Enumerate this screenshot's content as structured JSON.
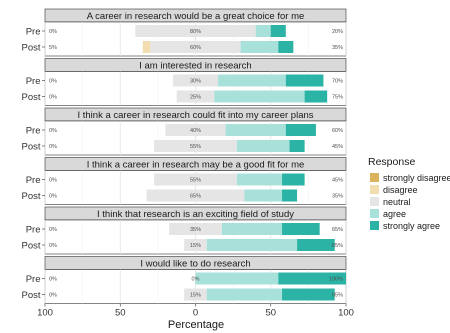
{
  "chart_data": {
    "type": "bar",
    "xlabel": "Percentage",
    "xticks": [
      "100",
      "50",
      "0",
      "50",
      "100"
    ],
    "xlim": [
      -100,
      100
    ],
    "legend": {
      "title": "Response",
      "placement": "right",
      "items": [
        {
          "label": "strongly disagree",
          "color": "#d9b45c"
        },
        {
          "label": "disagree",
          "color": "#f2ddb0"
        },
        {
          "label": "neutral",
          "color": "#e5e5e5"
        },
        {
          "label": "agree",
          "color": "#a8e0da"
        },
        {
          "label": "strongly agree",
          "color": "#2bb3a5"
        }
      ]
    },
    "panels": [
      {
        "title": "A career in research would be a great choice for me",
        "rows": [
          {
            "group": "Pre",
            "strongly_disagree": 0,
            "disagree": 0,
            "neutral": 80,
            "agree": 10,
            "strongly_agree": 10,
            "left_label": "0%",
            "center_label": "80%",
            "right_label": "20%"
          },
          {
            "group": "Post",
            "strongly_disagree": 0,
            "disagree": 5,
            "neutral": 60,
            "agree": 25,
            "strongly_agree": 10,
            "left_label": "5%",
            "center_label": "60%",
            "right_label": "35%"
          }
        ]
      },
      {
        "title": "I am interested in research",
        "rows": [
          {
            "group": "Pre",
            "strongly_disagree": 0,
            "disagree": 0,
            "neutral": 30,
            "agree": 45,
            "strongly_agree": 25,
            "left_label": "0%",
            "center_label": "30%",
            "right_label": "70%"
          },
          {
            "group": "Post",
            "strongly_disagree": 0,
            "disagree": 0,
            "neutral": 25,
            "agree": 60,
            "strongly_agree": 15,
            "left_label": "0%",
            "center_label": "25%",
            "right_label": "75%"
          }
        ]
      },
      {
        "title": "I think a career in research could fit into my career plans",
        "rows": [
          {
            "group": "Pre",
            "strongly_disagree": 0,
            "disagree": 0,
            "neutral": 40,
            "agree": 40,
            "strongly_agree": 20,
            "left_label": "0%",
            "center_label": "40%",
            "right_label": "60%"
          },
          {
            "group": "Post",
            "strongly_disagree": 0,
            "disagree": 0,
            "neutral": 55,
            "agree": 35,
            "strongly_agree": 10,
            "left_label": "0%",
            "center_label": "55%",
            "right_label": "45%"
          }
        ]
      },
      {
        "title": "I think a career in research may be a good fit for me",
        "rows": [
          {
            "group": "Pre",
            "strongly_disagree": 0,
            "disagree": 0,
            "neutral": 55,
            "agree": 30,
            "strongly_agree": 15,
            "left_label": "0%",
            "center_label": "55%",
            "right_label": "45%"
          },
          {
            "group": "Post",
            "strongly_disagree": 0,
            "disagree": 0,
            "neutral": 65,
            "agree": 25,
            "strongly_agree": 10,
            "left_label": "0%",
            "center_label": "65%",
            "right_label": "35%"
          }
        ]
      },
      {
        "title": "I think that research is an exciting field of study",
        "rows": [
          {
            "group": "Pre",
            "strongly_disagree": 0,
            "disagree": 0,
            "neutral": 35,
            "agree": 40,
            "strongly_agree": 25,
            "left_label": "0%",
            "center_label": "35%",
            "right_label": "65%"
          },
          {
            "group": "Post",
            "strongly_disagree": 0,
            "disagree": 0,
            "neutral": 15,
            "agree": 60,
            "strongly_agree": 25,
            "left_label": "0%",
            "center_label": "15%",
            "right_label": "85%"
          }
        ]
      },
      {
        "title": "I would like to do research",
        "rows": [
          {
            "group": "Pre",
            "strongly_disagree": 0,
            "disagree": 0,
            "neutral": 0,
            "agree": 55,
            "strongly_agree": 45,
            "left_label": "0%",
            "center_label": "0%",
            "right_label": "100%"
          },
          {
            "group": "Post",
            "strongly_disagree": 0,
            "disagree": 0,
            "neutral": 15,
            "agree": 50,
            "strongly_agree": 35,
            "left_label": "0%",
            "center_label": "15%",
            "right_label": "85%"
          }
        ]
      }
    ]
  }
}
